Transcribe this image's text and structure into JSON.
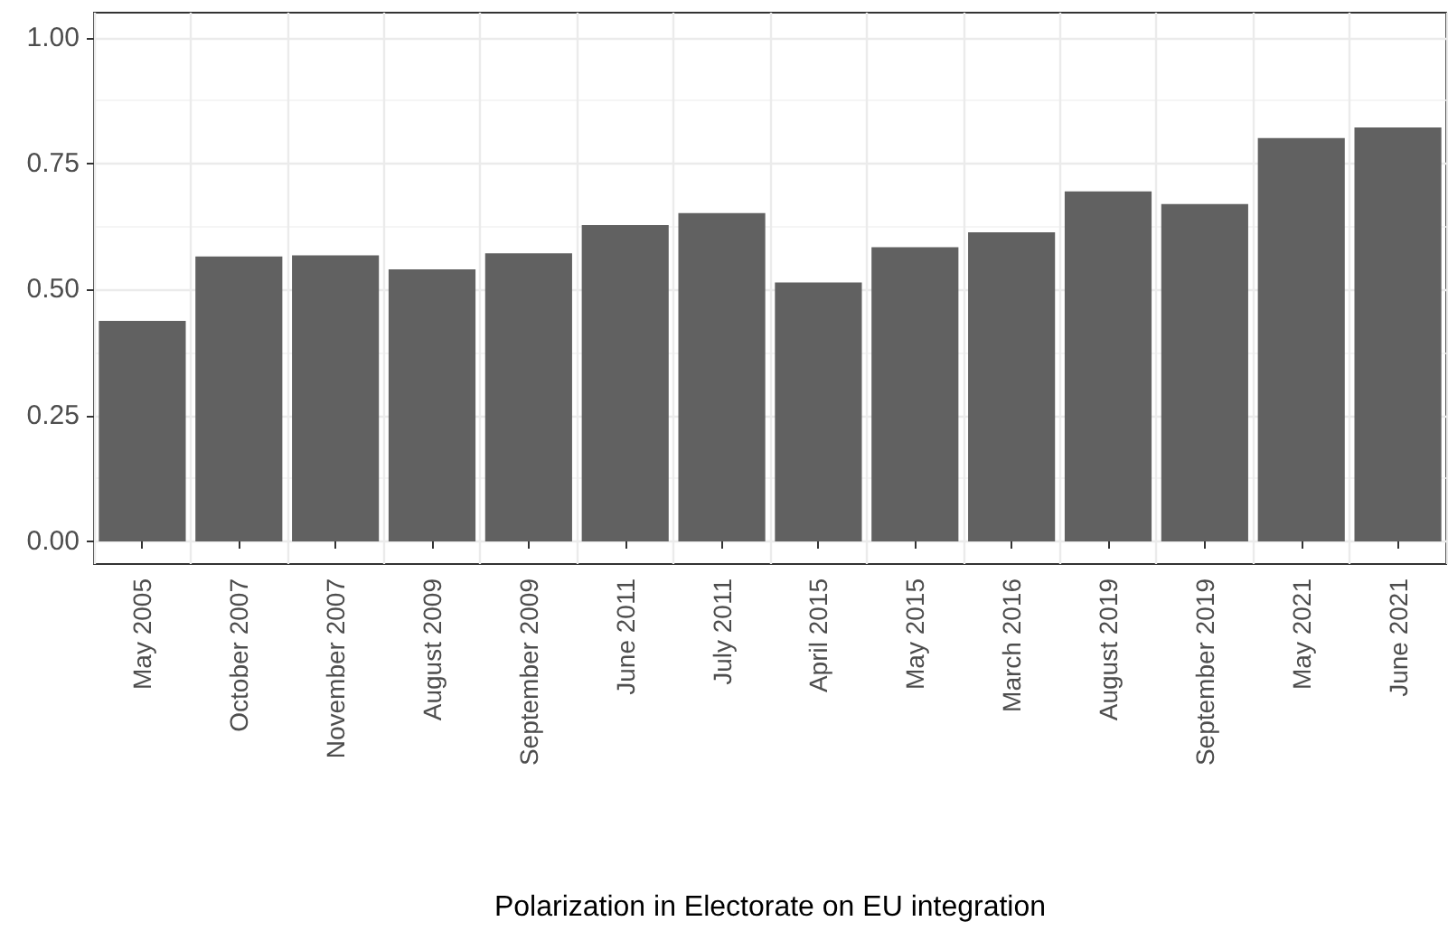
{
  "chart_data": {
    "type": "bar",
    "xlabel": "Polarization in Electorate on EU integration",
    "categories": [
      "May 2005",
      "October 2007",
      "November 2007",
      "August 2009",
      "September 2009",
      "June 2011",
      "July 2011",
      "April 2015",
      "May 2015",
      "March 2016",
      "August 2019",
      "September 2019",
      "May 2021",
      "June 2021"
    ],
    "values": [
      0.438,
      0.566,
      0.568,
      0.54,
      0.572,
      0.628,
      0.652,
      0.514,
      0.584,
      0.614,
      0.695,
      0.67,
      0.801,
      0.822
    ],
    "color": "#616161",
    "ylim": [
      -0.045,
      1.05
    ],
    "yticks": [
      {
        "value": 0,
        "label": "0.00"
      },
      {
        "value": 0.25,
        "label": "0.25"
      },
      {
        "value": 0.5,
        "label": "0.50"
      },
      {
        "value": 0.75,
        "label": "0.75"
      },
      {
        "value": 1,
        "label": "1.00"
      }
    ],
    "grid": true
  }
}
